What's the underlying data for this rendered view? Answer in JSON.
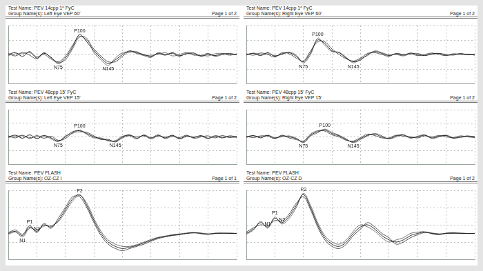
{
  "chart_data": [
    {
      "type": "line",
      "test_name": "Test Name: PEV 14cpp 1º FyC",
      "group_name": "Group Name(s): Left Eye VEP 60'",
      "page": "Page 1 of 2",
      "x": [
        0,
        10,
        20,
        30,
        40,
        50,
        60,
        70,
        80,
        90,
        100,
        110,
        120,
        130,
        140,
        150,
        160,
        170,
        180,
        190,
        200,
        210,
        220,
        230,
        240,
        250,
        260,
        270,
        280,
        290,
        300,
        310,
        320
      ],
      "xlim": [
        0,
        320
      ],
      "xticks": [
        0,
        40,
        80,
        120,
        160,
        200,
        240,
        280,
        320
      ],
      "ylim": [
        -8,
        8
      ],
      "yticks": [
        -8,
        -4,
        0,
        4,
        8
      ],
      "grid": true,
      "tick_labels": false,
      "series": [
        {
          "color": "#1a1a1a",
          "values": [
            0,
            0.5,
            -0.5,
            0.8,
            -1,
            0.3,
            -0.8,
            -2.5,
            -1,
            2,
            5.5,
            3.5,
            1,
            -1,
            -2.5,
            -1.5,
            0,
            1,
            0.5,
            0,
            -0.5,
            0.3,
            -0.2,
            0.5,
            -0.3,
            0.2,
            0.4,
            -0.5,
            0,
            -0.3,
            0.2,
            0.1,
            0
          ]
        },
        {
          "color": "#444444",
          "values": [
            0.3,
            -0.4,
            0.6,
            -0.2,
            -1.2,
            0.5,
            -1,
            -2,
            -0.5,
            2.5,
            5,
            4,
            1.5,
            -0.5,
            -2,
            -2,
            -0.5,
            0.8,
            0.3,
            -0.3,
            -0.8,
            0.5,
            0,
            0.3,
            -0.5,
            0.4,
            0.1,
            -0.3,
            0.3,
            -0.5,
            0,
            0.3,
            -0.1
          ]
        },
        {
          "color": "#666666",
          "values": [
            -0.3,
            0.2,
            0.2,
            0.5,
            -0.6,
            0,
            -1.3,
            -2.2,
            -1.5,
            1.5,
            4.8,
            4.5,
            0.5,
            -1.5,
            -3,
            -1,
            0.5,
            0.6,
            0.8,
            -0.2,
            -0.2,
            0,
            0.5,
            -0.4,
            0,
            0.5,
            -0.2,
            -0.2,
            -0.4,
            0.2,
            0.3,
            -0.2,
            0.2
          ]
        }
      ],
      "annotations": [
        {
          "text": "N75",
          "x": 70,
          "y": -2.5
        },
        {
          "text": "P100",
          "x": 100,
          "y": 5.5
        },
        {
          "text": "N145",
          "x": 140,
          "y": -3
        }
      ]
    },
    {
      "type": "line",
      "test_name": "Test Name: PEV 14cpp 1º FyC",
      "group_name": "Group Name(s): Right Eye VEP 60'",
      "page": "Page 1 of 2",
      "x": [
        0,
        10,
        20,
        30,
        40,
        50,
        60,
        70,
        80,
        90,
        100,
        110,
        120,
        130,
        140,
        150,
        160,
        170,
        180,
        190,
        200,
        210,
        220,
        230,
        240,
        250,
        260,
        270,
        280,
        290,
        300,
        310,
        320
      ],
      "xlim": [
        0,
        320
      ],
      "xticks": [
        0,
        40,
        80,
        120,
        160,
        200,
        240,
        280,
        320
      ],
      "ylim": [
        -8,
        8
      ],
      "yticks": [
        -8,
        -4,
        0,
        4,
        8
      ],
      "grid": true,
      "tick_labels": false,
      "series": [
        {
          "color": "#1a1a1a",
          "values": [
            0,
            0.3,
            -0.3,
            0.5,
            -0.5,
            0.2,
            0.5,
            -0.5,
            -2,
            0.5,
            4,
            3,
            1,
            0.5,
            -1,
            -2,
            -1.5,
            0,
            0.8,
            0.3,
            -0.3,
            0.2,
            -0.2,
            0.4,
            0,
            -0.3,
            0.2,
            0.3,
            -0.2,
            0,
            0.2,
            -0.1,
            0
          ]
        },
        {
          "color": "#444444",
          "values": [
            0.2,
            -0.2,
            0.4,
            0,
            -0.7,
            0.5,
            0.2,
            -1,
            -1.8,
            1,
            3.5,
            3.5,
            1.5,
            0,
            -1.2,
            -1.8,
            -1,
            0.3,
            0.5,
            0,
            -0.5,
            0.3,
            0,
            0.2,
            -0.3,
            0,
            0.4,
            0,
            -0.3,
            0.2,
            0,
            0.1,
            -0.2
          ]
        },
        {
          "color": "#666666",
          "values": [
            -0.2,
            0.4,
            0,
            0.2,
            -0.3,
            0,
            0.6,
            -0.2,
            -2.3,
            0,
            4.5,
            2.5,
            0.8,
            0.6,
            -0.8,
            -2.3,
            -1.2,
            -0.3,
            1,
            0.5,
            -0.1,
            0,
            -0.4,
            0.2,
            0.3,
            -0.2,
            0,
            0.3,
            0,
            -0.2,
            0.3,
            0,
            0.1
          ]
        }
      ],
      "annotations": [
        {
          "text": "N75",
          "x": 80,
          "y": -2.3
        },
        {
          "text": "P100",
          "x": 100,
          "y": 4.5
        },
        {
          "text": "N145",
          "x": 150,
          "y": -2.3
        }
      ]
    },
    {
      "type": "line",
      "test_name": "Test Name: PEV 48cpp 15' FyC",
      "group_name": "Group Name(s): Left Eye VEP 15'",
      "page": "Page 1 of 2",
      "x": [
        0,
        10,
        20,
        30,
        40,
        50,
        60,
        70,
        80,
        90,
        100,
        110,
        120,
        130,
        140,
        150,
        160,
        170,
        180,
        190,
        200,
        210,
        220,
        230,
        240,
        250,
        260,
        270,
        280,
        290,
        300,
        310,
        320
      ],
      "xlim": [
        0,
        320
      ],
      "xticks": [
        0,
        40,
        80,
        120,
        160,
        200,
        240,
        280,
        320
      ],
      "ylim": [
        -8,
        8
      ],
      "yticks": [
        -8,
        -4,
        0,
        4,
        8
      ],
      "grid": true,
      "tick_labels": false,
      "series": [
        {
          "color": "#1a1a1a",
          "values": [
            0,
            0.5,
            -0.4,
            0.6,
            -0.5,
            0.4,
            -0.3,
            -1.2,
            0,
            1.5,
            1.8,
            1,
            0,
            -0.5,
            -1,
            -1.3,
            0,
            0.6,
            -0.4,
            0.5,
            -0.6,
            0.4,
            -0.3,
            0.5,
            -0.5,
            0.3,
            -0.2,
            0.4,
            -0.4,
            0.2,
            -0.3,
            0.3,
            0
          ]
        },
        {
          "color": "#444444",
          "values": [
            0.3,
            -0.3,
            0.5,
            -0.5,
            0.4,
            -0.4,
            0.2,
            -1,
            -0.5,
            1.2,
            1.5,
            1.3,
            0.3,
            -0.8,
            -0.7,
            -1.5,
            -0.3,
            0.4,
            0,
            0.3,
            -0.3,
            0.6,
            -0.5,
            0.2,
            -0.2,
            0.5,
            -0.4,
            0,
            0.3,
            -0.3,
            0.4,
            -0.2,
            0.2
          ]
        },
        {
          "color": "#666666",
          "values": [
            -0.2,
            0.2,
            0.3,
            -0.2,
            0,
            0.3,
            -0.6,
            -1.4,
            0.3,
            1,
            2,
            0.7,
            -0.3,
            -0.3,
            -1.2,
            -1.1,
            0.2,
            0.3,
            -0.6,
            0.6,
            -0.2,
            0.2,
            0,
            0.3,
            -0.6,
            0.1,
            0,
            0.2,
            -0.5,
            0.4,
            -0.1,
            0,
            -0.2
          ]
        }
      ],
      "annotations": [
        {
          "text": "N75",
          "x": 70,
          "y": -1.4
        },
        {
          "text": "P100",
          "x": 100,
          "y": 2
        },
        {
          "text": "N145",
          "x": 150,
          "y": -1.5
        }
      ]
    },
    {
      "type": "line",
      "test_name": "Test Name: PEV 48cpp 15' FyC",
      "group_name": "Group Name(s): Right Eye VEP 15'",
      "page": "Page 1 of 2",
      "x": [
        0,
        10,
        20,
        30,
        40,
        50,
        60,
        70,
        80,
        90,
        100,
        110,
        120,
        130,
        140,
        150,
        160,
        170,
        180,
        190,
        200,
        210,
        220,
        230,
        240,
        250,
        260,
        270,
        280,
        290,
        300,
        310,
        320
      ],
      "xlim": [
        0,
        320
      ],
      "xticks": [
        0,
        40,
        80,
        120,
        160,
        200,
        240,
        280,
        320
      ],
      "ylim": [
        -8,
        8
      ],
      "yticks": [
        -8,
        -4,
        0,
        4,
        8
      ],
      "grid": true,
      "tick_labels": false,
      "series": [
        {
          "color": "#1a1a1a",
          "values": [
            0,
            0.4,
            -0.3,
            0.5,
            -0.4,
            0.3,
            0,
            -0.5,
            -1.5,
            0.5,
            1.5,
            2,
            1,
            0.3,
            -0.8,
            -1.5,
            -0.5,
            0.5,
            0.8,
            0,
            -0.5,
            0.3,
            0.6,
            -0.2,
            0,
            0.5,
            -0.3,
            0.2,
            0.4,
            -0.4,
            0,
            0.3,
            0
          ]
        },
        {
          "color": "#444444",
          "values": [
            0.2,
            -0.2,
            0.3,
            0.2,
            -0.5,
            0.5,
            -0.3,
            -0.8,
            -1.2,
            0.8,
            1.8,
            1.7,
            0.6,
            0,
            -1,
            -1.2,
            -0.2,
            0.8,
            0.4,
            -0.3,
            -0.3,
            0.5,
            0.2,
            0,
            -0.3,
            0.3,
            0,
            0.4,
            0,
            -0.2,
            0.3,
            0,
            -0.2
          ]
        },
        {
          "color": "#666666",
          "values": [
            -0.2,
            0.3,
            0,
            0.4,
            -0.2,
            0,
            0.3,
            -0.4,
            -1.7,
            0.2,
            1.2,
            2.3,
            1.3,
            0.5,
            -0.6,
            -1.7,
            -0.8,
            0.3,
            1,
            0.3,
            -0.6,
            0,
            0.5,
            -0.4,
            0.2,
            0.6,
            -0.5,
            0,
            0.5,
            -0.2,
            -0.2,
            0.2,
            0.1
          ]
        }
      ],
      "annotations": [
        {
          "text": "N75",
          "x": 80,
          "y": -1.7
        },
        {
          "text": "P100",
          "x": 110,
          "y": 2.3
        },
        {
          "text": "N145",
          "x": 150,
          "y": -1.7
        }
      ]
    },
    {
      "type": "line",
      "test_name": "Test Name: PEV FLASH",
      "group_name": "Group Name(s): OZ-CZ I",
      "page": "Page 1 of 1",
      "x": [
        0,
        10,
        20,
        30,
        40,
        50,
        60,
        70,
        80,
        90,
        100,
        110,
        120,
        130,
        140,
        150,
        160,
        170,
        180,
        190,
        200,
        210,
        220,
        230,
        240,
        250,
        260,
        270,
        280,
        290,
        300,
        310,
        320
      ],
      "xlim": [
        0,
        320
      ],
      "xticks": [
        0,
        40,
        80,
        120,
        160,
        200,
        240,
        280,
        320
      ],
      "ylim": [
        -6,
        10
      ],
      "yticks": [
        -6,
        -2,
        2,
        6,
        10
      ],
      "grid": true,
      "tick_labels": false,
      "series": [
        {
          "color": "#1a1a1a",
          "values": [
            0,
            0.5,
            -0.5,
            1.5,
            0.5,
            2,
            1.5,
            3,
            5.5,
            8,
            9,
            6.5,
            3,
            0,
            -2,
            -3,
            -3.5,
            -3.2,
            -2.8,
            -2.2,
            -1.6,
            -1,
            -0.7,
            -0.4,
            -0.2,
            0,
            0.2,
            0,
            -0.2,
            0,
            0.1,
            0,
            0
          ]
        },
        {
          "color": "#444444",
          "values": [
            0.2,
            0.8,
            -0.2,
            1.8,
            0.2,
            2.3,
            1.2,
            3.5,
            6,
            8.5,
            8.5,
            6,
            2.5,
            -0.5,
            -2.5,
            -3.5,
            -4,
            -3.5,
            -3,
            -2.5,
            -1.8,
            -1.2,
            -0.8,
            -0.5,
            -0.3,
            0,
            0.1,
            0.1,
            -0.1,
            0,
            0,
            0.1,
            0
          ]
        },
        {
          "color": "#666666",
          "values": [
            -0.2,
            0.3,
            -0.8,
            1.2,
            0.8,
            1.7,
            1.8,
            2.7,
            5,
            7.5,
            8.8,
            7,
            3.5,
            0.5,
            -1.5,
            -2.5,
            -3,
            -3,
            -2.6,
            -2,
            -1.4,
            -0.9,
            -0.6,
            -0.3,
            -0.1,
            0.1,
            0.2,
            -0.1,
            -0.2,
            0.1,
            0,
            0,
            0
          ]
        }
      ],
      "annotations": [
        {
          "text": "N1",
          "x": 20,
          "y": -0.8
        },
        {
          "text": "P1",
          "x": 30,
          "y": 1.8
        },
        {
          "text": "N2",
          "x": 40,
          "y": 0.2
        },
        {
          "text": "P2",
          "x": 100,
          "y": 9
        }
      ]
    },
    {
      "type": "line",
      "test_name": "Test Name: PEV FLASH",
      "group_name": "Group Name(s): OZ-CZ D",
      "page": "Page 1 of 2",
      "x": [
        0,
        10,
        20,
        30,
        40,
        50,
        60,
        70,
        80,
        90,
        100,
        110,
        120,
        130,
        140,
        150,
        160,
        170,
        180,
        190,
        200,
        210,
        220,
        230,
        240,
        250,
        260,
        270,
        280,
        290,
        300,
        310,
        320
      ],
      "xlim": [
        0,
        320
      ],
      "xticks": [
        0,
        40,
        80,
        120,
        160,
        200,
        240,
        280,
        320
      ],
      "ylim": [
        -6,
        10
      ],
      "yticks": [
        -6,
        -2,
        2,
        6,
        10
      ],
      "grid": true,
      "tick_labels": false,
      "series": [
        {
          "color": "#1a1a1a",
          "values": [
            0,
            1,
            2.5,
            1.5,
            3.5,
            2.5,
            4,
            6.5,
            9,
            6,
            2,
            -1,
            -2.5,
            -3,
            -2,
            0,
            1.5,
            2,
            1,
            -0.5,
            -1.5,
            -2,
            -1.5,
            -0.5,
            0,
            0.3,
            0,
            -0.2,
            0,
            0.1,
            0,
            0,
            0
          ]
        },
        {
          "color": "#444444",
          "values": [
            0.3,
            1.3,
            2,
            1.8,
            3,
            2.8,
            4.5,
            7,
            8.5,
            5.5,
            1.5,
            -1.5,
            -3,
            -3.5,
            -2.5,
            -0.5,
            1,
            2.5,
            1.5,
            0,
            -1,
            -2.5,
            -2,
            -1,
            -0.3,
            0.2,
            0.1,
            -0.1,
            0,
            0,
            0.1,
            0,
            0
          ]
        },
        {
          "color": "#666666",
          "values": [
            -0.2,
            0.8,
            2.8,
            1.2,
            3.8,
            2.2,
            3.5,
            6,
            9.3,
            6.5,
            2.5,
            -0.5,
            -2,
            -2.5,
            -1.5,
            0.5,
            2,
            1.5,
            0.5,
            -1,
            -2,
            -1.5,
            -1,
            0,
            0.3,
            0.4,
            -0.1,
            -0.3,
            0.1,
            0.2,
            0,
            0,
            0
          ]
        }
      ],
      "annotations": [
        {
          "text": "N1",
          "x": 30,
          "y": 1.2
        },
        {
          "text": "P1",
          "x": 40,
          "y": 3.8
        },
        {
          "text": "N2",
          "x": 50,
          "y": 2.2
        },
        {
          "text": "P2",
          "x": 80,
          "y": 9.3
        }
      ]
    }
  ]
}
